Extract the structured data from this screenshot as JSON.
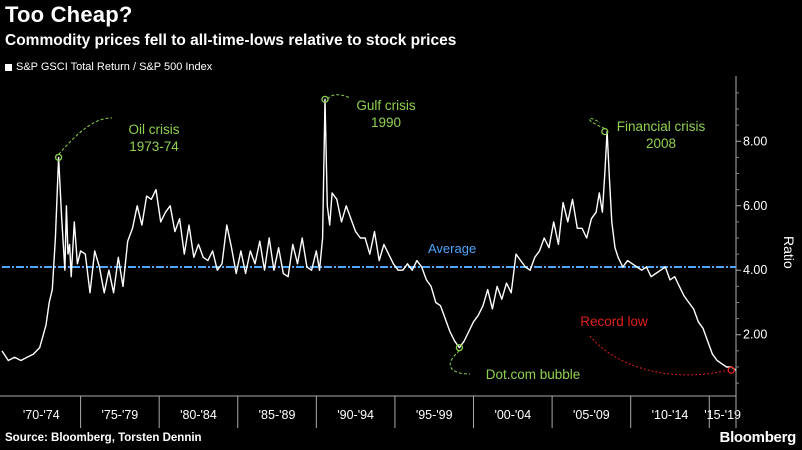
{
  "header": {
    "title": "Too Cheap?",
    "subtitle": "Commodity prices fell to all-time-lows relative to stock prices"
  },
  "legend": {
    "label": "S&P GSCI Total Return / S&P 500 Index"
  },
  "footer": {
    "source": "Source: Bloomberg, Torsten Dennin",
    "brand": "Bloomberg"
  },
  "colors": {
    "background": "#000000",
    "series": "#ffffff",
    "average": "#4da6ff",
    "annotation": "#8fd14f",
    "record_low": "#e0201b",
    "grid": "#666666"
  },
  "chart_data": {
    "type": "line",
    "title": "Too Cheap?",
    "subtitle": "Commodity prices fell to all-time-lows relative to stock prices",
    "ylabel": "Ratio",
    "xlabel": "",
    "ylim": [
      0.1,
      9.9
    ],
    "xlim": [
      1970.0,
      2016.7
    ],
    "grid": false,
    "legend_placement": "top-left",
    "y_ticks": [
      2.0,
      4.0,
      6.0,
      8.0
    ],
    "y_tick_labels": [
      "2.00",
      "4.00",
      "6.00",
      "8.00"
    ],
    "x_tick_labels": [
      "'70-'74",
      "'75-'79",
      "'80-'84",
      "'85-'89",
      "'90-'94",
      "'95-'99",
      "'00-'04",
      "'05-'09",
      "'10-'14",
      "'15-'19"
    ],
    "x_groups": [
      [
        1970,
        1975
      ],
      [
        1975,
        1980
      ],
      [
        1980,
        1985
      ],
      [
        1985,
        1990
      ],
      [
        1990,
        1995
      ],
      [
        1995,
        2000
      ],
      [
        2000,
        2005
      ],
      [
        2005,
        2010
      ],
      [
        2010,
        2015
      ],
      [
        2015,
        2020
      ]
    ],
    "average": {
      "label": "Average",
      "value": 4.1
    },
    "series": [
      {
        "name": "S&P GSCI Total Return / S&P 500 Index",
        "x": [
          1970.0,
          1970.4,
          1970.8,
          1971.2,
          1971.6,
          1972.0,
          1972.4,
          1972.8,
          1973.0,
          1973.2,
          1973.4,
          1973.6,
          1973.8,
          1974.0,
          1974.1,
          1974.2,
          1974.3,
          1974.4,
          1974.6,
          1974.8,
          1975.0,
          1975.3,
          1975.6,
          1975.9,
          1976.2,
          1976.5,
          1976.8,
          1977.1,
          1977.4,
          1977.7,
          1978.0,
          1978.3,
          1978.6,
          1978.9,
          1979.2,
          1979.5,
          1979.8,
          1980.1,
          1980.4,
          1980.7,
          1981.0,
          1981.3,
          1981.6,
          1981.9,
          1982.2,
          1982.5,
          1982.8,
          1983.1,
          1983.4,
          1983.7,
          1984.0,
          1984.3,
          1984.6,
          1984.9,
          1985.2,
          1985.5,
          1985.8,
          1986.1,
          1986.4,
          1986.7,
          1987.0,
          1987.3,
          1987.6,
          1987.9,
          1988.2,
          1988.5,
          1988.8,
          1989.1,
          1989.4,
          1989.7,
          1990.0,
          1990.2,
          1990.4,
          1990.55,
          1990.7,
          1990.85,
          1991.0,
          1991.3,
          1991.6,
          1991.9,
          1992.2,
          1992.5,
          1992.8,
          1993.1,
          1993.4,
          1993.7,
          1994.0,
          1994.3,
          1994.6,
          1994.9,
          1995.2,
          1995.5,
          1995.8,
          1996.1,
          1996.4,
          1996.7,
          1997.0,
          1997.3,
          1997.6,
          1997.9,
          1998.2,
          1998.5,
          1998.8,
          1999.1,
          1999.4,
          1999.7,
          2000.0,
          2000.3,
          2000.6,
          2000.9,
          2001.2,
          2001.5,
          2001.8,
          2002.1,
          2002.4,
          2002.7,
          2003.0,
          2003.3,
          2003.6,
          2003.9,
          2004.2,
          2004.5,
          2004.8,
          2005.1,
          2005.4,
          2005.7,
          2006.0,
          2006.3,
          2006.6,
          2006.9,
          2007.2,
          2007.5,
          2007.8,
          2008.0,
          2008.2,
          2008.35,
          2008.5,
          2008.65,
          2008.8,
          2009.0,
          2009.2,
          2009.5,
          2009.8,
          2010.1,
          2010.4,
          2010.7,
          2011.0,
          2011.3,
          2011.6,
          2011.9,
          2012.2,
          2012.5,
          2012.8,
          2013.1,
          2013.4,
          2013.7,
          2014.0,
          2014.3,
          2014.6,
          2014.9,
          2015.2,
          2015.5,
          2015.8,
          2016.1,
          2016.4,
          2016.7
        ],
        "values": [
          1.5,
          1.2,
          1.3,
          1.2,
          1.3,
          1.4,
          1.6,
          2.3,
          3.0,
          3.4,
          5.0,
          7.5,
          5.6,
          4.0,
          6.0,
          4.5,
          4.8,
          3.8,
          5.5,
          4.2,
          4.6,
          4.5,
          3.3,
          4.6,
          4.1,
          3.3,
          4.0,
          3.3,
          4.4,
          3.5,
          4.9,
          5.3,
          6.0,
          5.4,
          6.3,
          6.2,
          6.5,
          5.5,
          5.8,
          6.0,
          5.2,
          5.6,
          4.5,
          5.4,
          4.4,
          4.8,
          4.4,
          4.3,
          4.6,
          4.0,
          4.2,
          5.4,
          4.7,
          3.9,
          4.6,
          3.9,
          4.6,
          4.2,
          4.9,
          4.0,
          5.0,
          4.0,
          4.7,
          3.9,
          3.8,
          4.8,
          4.2,
          5.0,
          4.1,
          4.0,
          4.6,
          4.0,
          5.0,
          9.3,
          6.0,
          5.4,
          6.4,
          6.2,
          5.5,
          6.0,
          5.6,
          5.2,
          5.0,
          5.0,
          4.5,
          5.2,
          4.3,
          4.8,
          4.5,
          4.2,
          4.0,
          4.0,
          4.2,
          4.0,
          4.3,
          4.1,
          3.7,
          3.5,
          3.0,
          2.9,
          2.5,
          2.1,
          1.8,
          1.6,
          1.8,
          2.1,
          2.4,
          2.6,
          2.9,
          3.4,
          2.8,
          3.5,
          3.1,
          3.6,
          3.3,
          4.5,
          4.3,
          4.1,
          4.0,
          4.4,
          4.6,
          5.0,
          4.7,
          5.5,
          4.8,
          6.1,
          5.5,
          6.2,
          5.3,
          5.3,
          5.0,
          5.6,
          5.8,
          6.4,
          5.8,
          7.0,
          8.3,
          6.8,
          5.5,
          4.7,
          4.4,
          4.1,
          4.3,
          4.2,
          4.1,
          4.0,
          4.1,
          3.8,
          3.9,
          4.0,
          4.1,
          3.7,
          3.8,
          3.5,
          3.2,
          3.0,
          2.8,
          2.4,
          2.2,
          1.8,
          1.4,
          1.2,
          1.1,
          1.0,
          1.0,
          0.9
        ]
      }
    ],
    "annotations": [
      {
        "label": "Oil crisis\n1973-74",
        "x": 1973.6,
        "y": 7.5
      },
      {
        "label": "Gulf crisis\n1990",
        "x": 1990.55,
        "y": 9.3
      },
      {
        "label": "Financial crisis\n2008",
        "x": 2008.35,
        "y": 8.3
      },
      {
        "label": "Dot.com bubble",
        "x": 1999.1,
        "y": 1.6
      },
      {
        "label": "Record low",
        "x": 2016.4,
        "y": 0.9
      }
    ]
  },
  "annotation_text": {
    "oil_line1": "Oil crisis",
    "oil_line2": "1973-74",
    "gulf_line1": "Gulf crisis",
    "gulf_line2": "1990",
    "fin_line1": "Financial crisis",
    "fin_line2": "2008",
    "dotcom": "Dot.com bubble",
    "record_low": "Record low",
    "average": "Average",
    "ylabel": "Ratio"
  }
}
